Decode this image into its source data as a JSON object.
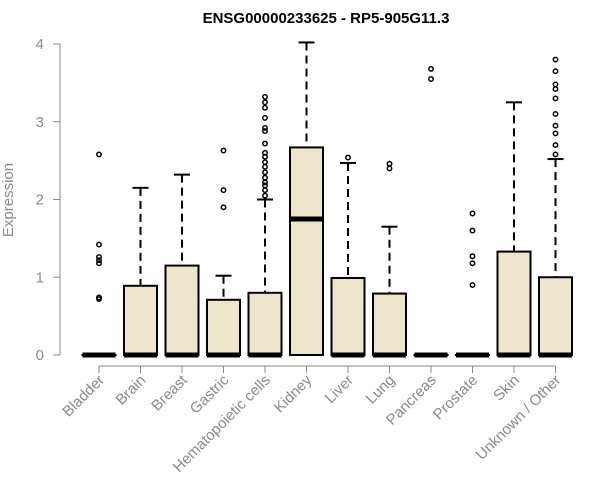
{
  "chart_data": {
    "type": "boxplot",
    "title": "ENSG00000233625 - RP5-905G11.3",
    "xlabel": "",
    "ylabel": "Expression",
    "ylim": [
      0,
      4
    ],
    "yticks": [
      0,
      1,
      2,
      3,
      4
    ],
    "grid": false,
    "colors": {
      "box_fill": "#ede6cc",
      "stroke": "#000000",
      "axis": "#8a8a8a"
    },
    "categories": [
      "Bladder",
      "Brain",
      "Breast",
      "Gastric",
      "Hematopoietic cells",
      "Kidney",
      "Liver",
      "Lung",
      "Pancreas",
      "Prostate",
      "Skin",
      "Unknown / Other"
    ],
    "boxes": [
      {
        "category": "Bladder",
        "q1": 0,
        "median": 0,
        "q3": 0,
        "whisker_low": 0,
        "whisker_high": 0,
        "outliers": [
          0.72,
          0.74,
          1.18,
          1.22,
          1.26,
          1.42,
          2.58
        ]
      },
      {
        "category": "Brain",
        "q1": 0,
        "median": 0,
        "q3": 0.89,
        "whisker_low": 0,
        "whisker_high": 2.15,
        "outliers": []
      },
      {
        "category": "Breast",
        "q1": 0,
        "median": 0,
        "q3": 1.15,
        "whisker_low": 0,
        "whisker_high": 2.32,
        "outliers": []
      },
      {
        "category": "Gastric",
        "q1": 0,
        "median": 0,
        "q3": 0.71,
        "whisker_low": 0,
        "whisker_high": 1.02,
        "outliers": [
          1.9,
          2.12,
          2.63
        ]
      },
      {
        "category": "Hematopoietic cells",
        "q1": 0,
        "median": 0,
        "q3": 0.8,
        "whisker_low": 0,
        "whisker_high": 2.0,
        "outliers": [
          2.05,
          2.12,
          2.18,
          2.22,
          2.28,
          2.35,
          2.42,
          2.48,
          2.55,
          2.6,
          2.72,
          2.88,
          2.92,
          3.05,
          3.18,
          3.25,
          3.32
        ]
      },
      {
        "category": "Kidney",
        "q1": 0,
        "median": 1.75,
        "q3": 2.67,
        "whisker_low": 0,
        "whisker_high": 4.02,
        "outliers": []
      },
      {
        "category": "Liver",
        "q1": 0,
        "median": 0,
        "q3": 0.99,
        "whisker_low": 0,
        "whisker_high": 2.47,
        "outliers": [
          2.54
        ]
      },
      {
        "category": "Lung",
        "q1": 0,
        "median": 0,
        "q3": 0.79,
        "whisker_low": 0,
        "whisker_high": 1.65,
        "outliers": [
          2.4,
          2.46
        ]
      },
      {
        "category": "Pancreas",
        "q1": 0,
        "median": 0,
        "q3": 0,
        "whisker_low": 0,
        "whisker_high": 0,
        "outliers": [
          3.55,
          3.68
        ]
      },
      {
        "category": "Prostate",
        "q1": 0,
        "median": 0,
        "q3": 0,
        "whisker_low": 0,
        "whisker_high": 0,
        "outliers": [
          0.9,
          1.18,
          1.27,
          1.6,
          1.82
        ]
      },
      {
        "category": "Skin",
        "q1": 0,
        "median": 0,
        "q3": 1.33,
        "whisker_low": 0,
        "whisker_high": 3.25,
        "outliers": []
      },
      {
        "category": "Unknown / Other",
        "q1": 0,
        "median": 0,
        "q3": 1.0,
        "whisker_low": 0,
        "whisker_high": 2.52,
        "outliers": [
          2.58,
          2.7,
          2.85,
          2.95,
          3.1,
          3.3,
          3.42,
          3.48,
          3.65,
          3.8
        ]
      }
    ]
  }
}
